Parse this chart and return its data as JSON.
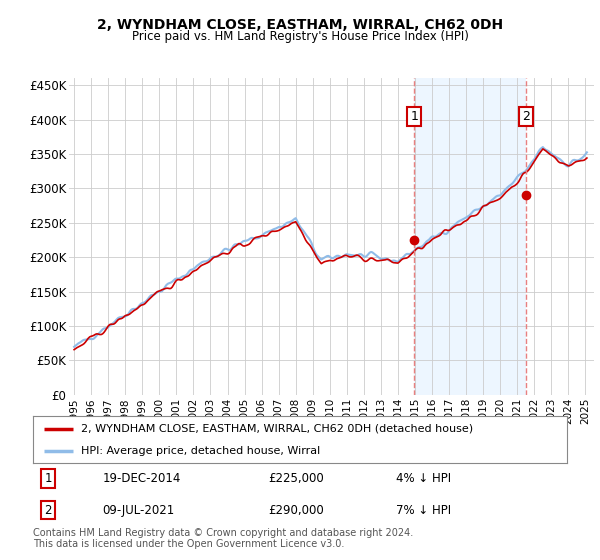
{
  "title": "2, WYNDHAM CLOSE, EASTHAM, WIRRAL, CH62 0DH",
  "subtitle": "Price paid vs. HM Land Registry's House Price Index (HPI)",
  "legend_line1": "2, WYNDHAM CLOSE, EASTHAM, WIRRAL, CH62 0DH (detached house)",
  "legend_line2": "HPI: Average price, detached house, Wirral",
  "marker1_label": "1",
  "marker1_date": "19-DEC-2014",
  "marker1_price": "£225,000",
  "marker1_hpi": "4% ↓ HPI",
  "marker1_x": 2014.96,
  "marker1_y": 225000,
  "marker2_label": "2",
  "marker2_date": "09-JUL-2021",
  "marker2_price": "£290,000",
  "marker2_hpi": "7% ↓ HPI",
  "marker2_x": 2021.52,
  "marker2_y": 290000,
  "footnote": "Contains HM Land Registry data © Crown copyright and database right 2024.\nThis data is licensed under the Open Government Licence v3.0.",
  "hpi_color": "#90bce8",
  "hpi_fill_color": "#d8eaf8",
  "price_color": "#cc0000",
  "marker_vline_color": "#e88080",
  "marker_box_edge_color": "#cc0000",
  "shade_color": "#ddeeff",
  "ylim": [
    0,
    460000
  ],
  "xlim": [
    1994.7,
    2025.5
  ],
  "background_color": "#ffffff",
  "plot_bg_color": "#ffffff",
  "yticks": [
    0,
    50000,
    100000,
    150000,
    200000,
    250000,
    300000,
    350000,
    400000,
    450000
  ],
  "ytick_labels": [
    "£0",
    "£50K",
    "£100K",
    "£150K",
    "£200K",
    "£250K",
    "£300K",
    "£350K",
    "£400K",
    "£450K"
  ],
  "xticks": [
    1995,
    1996,
    1997,
    1998,
    1999,
    2000,
    2001,
    2002,
    2003,
    2004,
    2005,
    2006,
    2007,
    2008,
    2009,
    2010,
    2011,
    2012,
    2013,
    2014,
    2015,
    2016,
    2017,
    2018,
    2019,
    2020,
    2021,
    2022,
    2023,
    2024,
    2025
  ]
}
